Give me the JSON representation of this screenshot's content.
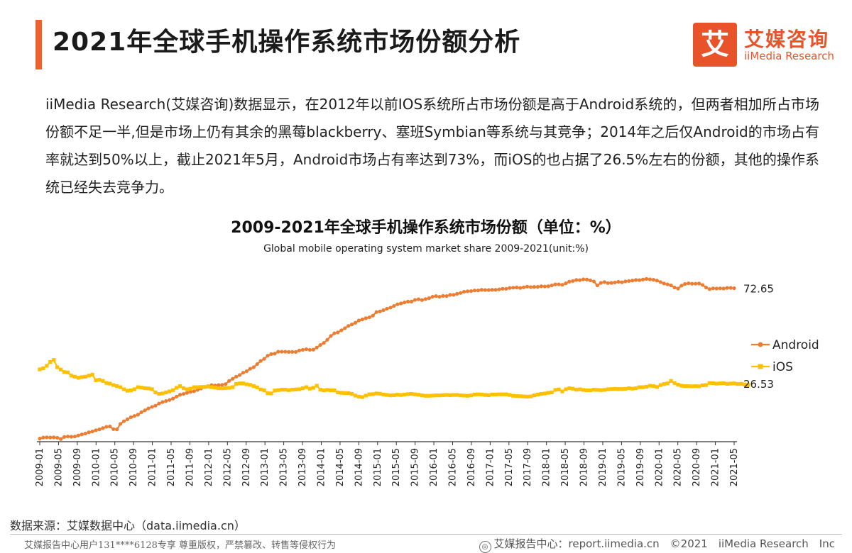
{
  "header": {
    "title": "2021年全球手机操作系统市场份额分析",
    "logo_cn": "艾媒咨询",
    "logo_en": "iiMedia Research",
    "logo_mark": "艾"
  },
  "intro": "iiMedia Research(艾媒咨询)数据显示，在2012年以前IOS系统所占市场份额是高于Android系统的，但两者相加所占市场份额不足一半,但是市场上仍有其余的黑莓blackberry、塞班Symbian等系统与其竞争；2014年之后仅Android的市场占有率就达到50%以上，截止2021年5月，Android市场占有率达到73%，而iOS的也占据了26.5%左右的份额，其他的操作系统已经失去竞争力。",
  "footer": {
    "source": "数据来源：艾媒数据中心（data.iimedia.cn）",
    "left": "艾媒报告中心用户131****6128专享 尊重版权，严禁篡改、转售等侵权行为",
    "right": "艾媒报告中心：report.iimedia.cn　©2021　iiMedia Research　Inc"
  },
  "chart_data": {
    "type": "line",
    "title": "2009-2021年全球手机操作系统市场份额（单位：%）",
    "subtitle": "Global mobile operating system market share 2009-2021(unit:%)",
    "x_range": [
      "2009-01",
      "2021-05"
    ],
    "x_tick_labels": [
      "2009-01",
      "2009-05",
      "2009-09",
      "2010-01",
      "2010-05",
      "2010-09",
      "2011-01",
      "2011-05",
      "2011-09",
      "2012-01",
      "2012-05",
      "2012-09",
      "2013-01",
      "2013-05",
      "2013-09",
      "2014-01",
      "2014-05",
      "2014-09",
      "2015-01",
      "2015-05",
      "2015-09",
      "2016-01",
      "2016-05",
      "2016-09",
      "2017-01",
      "2017-05",
      "2017-09",
      "2018-01",
      "2018-05",
      "2018-09",
      "2019-01",
      "2019-05",
      "2019-09",
      "2020-01",
      "2020-05",
      "2020-09",
      "2021-01",
      "2021-05"
    ],
    "grid": false,
    "legend_position": "right",
    "end_labels": [
      "72.65",
      "26.53"
    ],
    "series": [
      {
        "name": "Android",
        "color": "#ed7d31",
        "marker": "circle",
        "values": [
          1.0,
          1.5,
          1.6,
          1.5,
          1.6,
          1.4,
          0.8,
          1.8,
          2.0,
          1.9,
          2.0,
          2.5,
          3.0,
          3.4,
          4.0,
          4.4,
          5.0,
          5.4,
          6.0,
          6.6,
          6.8,
          5.5,
          5.4,
          8.0,
          9.3,
          10.2,
          11.2,
          11.8,
          12.4,
          13.6,
          14.5,
          15.4,
          16.1,
          16.7,
          17.7,
          18.4,
          18.9,
          19.4,
          20.1,
          21.0,
          21.9,
          22.3,
          22.8,
          23.3,
          23.6,
          24.2,
          24.9,
          25.6,
          26.0,
          26.5,
          26.3,
          26.5,
          26.6,
          27.0,
          28.5,
          29.5,
          30.5,
          31.3,
          32.4,
          33.1,
          34.3,
          35.0,
          36.5,
          38.0,
          39.0,
          40.5,
          41.3,
          41.5,
          42.4,
          42.4,
          42.4,
          42.3,
          42.3,
          42.3,
          43.0,
          43.3,
          43.6,
          43.3,
          43.4,
          44.4,
          45.6,
          46.6,
          48.1,
          49.9,
          51.2,
          51.6,
          52.6,
          53.6,
          54.7,
          55.4,
          56.2,
          57.3,
          57.8,
          58.4,
          58.8,
          59.6,
          61.3,
          61.6,
          62.2,
          62.9,
          63.4,
          64.2,
          65.0,
          65.4,
          65.9,
          66.3,
          66.3,
          67.1,
          67.4,
          67.0,
          67.5,
          67.9,
          68.6,
          68.9,
          68.6,
          69.0,
          68.9,
          69.5,
          69.5,
          70.0,
          70.4,
          71.0,
          71.2,
          71.3,
          71.6,
          71.6,
          71.9,
          71.8,
          71.8,
          71.9,
          71.9,
          72.1,
          72.4,
          72.4,
          72.8,
          72.9,
          73.0,
          72.8,
          73.1,
          73.4,
          73.2,
          73.3,
          73.3,
          73.6,
          73.5,
          73.6,
          74.0,
          74.5,
          74.5,
          74.3,
          75.0,
          75.8,
          76.1,
          76.6,
          76.5,
          76.9,
          76.8,
          76.4,
          75.9,
          74.0,
          75.2,
          75.6,
          75.1,
          75.2,
          75.4,
          75.7,
          75.5,
          75.9,
          76.1,
          76.3,
          76.6,
          76.5,
          76.8,
          77.1,
          76.9,
          76.7,
          76.3,
          75.6,
          74.9,
          74.5,
          74.0,
          73.0,
          72.5,
          73.9,
          74.7,
          75.0,
          74.8,
          74.8,
          74.9,
          74.2,
          73.0,
          72.2,
          72.6,
          72.5,
          72.6,
          72.5,
          72.8,
          72.8,
          72.65
        ]
      },
      {
        "name": "iOS",
        "color": "#ffc000",
        "marker": "square",
        "values": [
          34.0,
          34.5,
          35.7,
          37.5,
          38.5,
          35.0,
          33.9,
          32.7,
          32.5,
          31.0,
          30.5,
          30.0,
          30.3,
          30.5,
          31.0,
          31.5,
          28.8,
          29.0,
          28.5,
          27.5,
          27.2,
          26.5,
          26.0,
          25.5,
          24.5,
          23.8,
          24.0,
          24.5,
          25.5,
          25.3,
          25.0,
          24.9,
          24.5,
          23.0,
          22.3,
          22.5,
          23.0,
          23.5,
          24.1,
          25.2,
          26.0,
          25.0,
          24.5,
          24.8,
          25.5,
          25.5,
          25.6,
          25.6,
          25.8,
          25.5,
          25.3,
          25.0,
          25.0,
          25.1,
          25.2,
          25.5,
          27.0,
          27.3,
          27.3,
          26.9,
          26.6,
          26.0,
          25.4,
          24.4,
          24.0,
          22.6,
          22.5,
          23.9,
          24.1,
          24.3,
          24.3,
          24.1,
          24.3,
          24.4,
          24.5,
          25.0,
          25.5,
          24.8,
          25.2,
          26.2,
          24.3,
          24.0,
          24.2,
          24.0,
          24.0,
          23.0,
          22.8,
          22.7,
          22.7,
          22.3,
          21.5,
          21.0,
          20.8,
          21.5,
          22.1,
          22.2,
          22.5,
          22.4,
          22.0,
          21.8,
          21.6,
          21.7,
          21.9,
          21.8,
          22.0,
          22.2,
          22.3,
          22.1,
          21.9,
          21.6,
          21.4,
          21.4,
          21.5,
          21.6,
          21.6,
          21.7,
          21.8,
          21.7,
          21.8,
          21.8,
          21.6,
          21.5,
          21.4,
          21.6,
          22.0,
          22.1,
          22.0,
          21.8,
          21.7,
          22.0,
          22.0,
          22.1,
          22.1,
          22.1,
          21.8,
          21.4,
          21.3,
          21.2,
          21.1,
          21.0,
          21.1,
          21.6,
          22.0,
          22.3,
          22.5,
          22.8,
          23.0,
          24.2,
          24.4,
          23.5,
          24.5,
          25.0,
          24.8,
          24.3,
          24.5,
          24.2,
          24.0,
          24.0,
          24.3,
          24.2,
          24.1,
          24.2,
          24.5,
          24.6,
          24.7,
          24.6,
          24.6,
          24.7,
          25.0,
          24.8,
          25.0,
          25.5,
          25.5,
          25.7,
          26.2,
          26.0,
          25.6,
          26.5,
          27.0,
          27.3,
          28.5,
          27.5,
          26.7,
          26.2,
          26.0,
          26.0,
          25.9,
          26.0,
          25.9,
          26.4,
          26.5,
          27.5,
          27.4,
          27.2,
          27.3,
          27.4,
          27.1,
          27.2,
          27.3,
          27.0,
          27.1,
          26.8,
          26.53
        ]
      }
    ]
  }
}
